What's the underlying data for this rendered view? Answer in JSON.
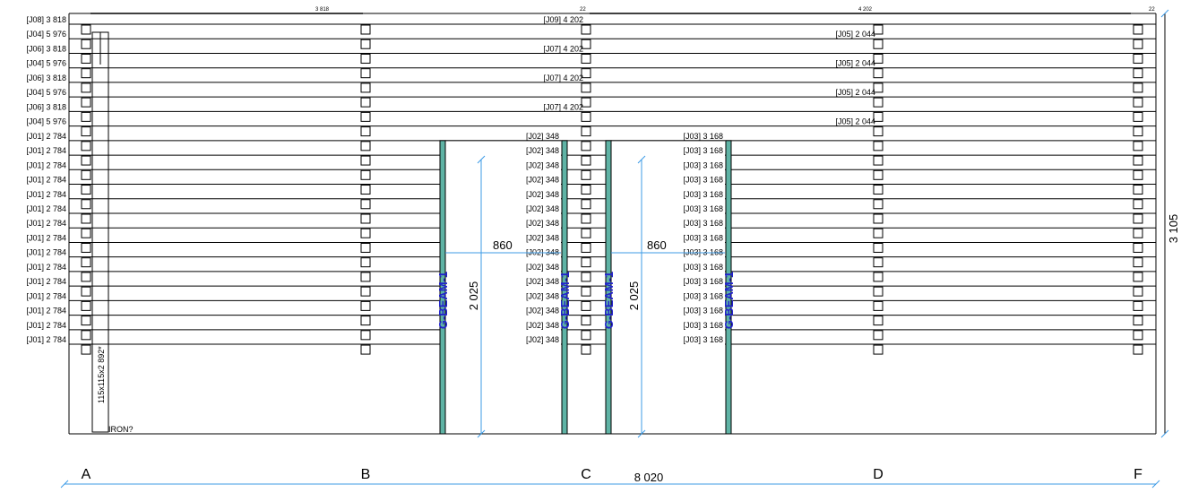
{
  "colors": {
    "line": "#000000",
    "dimension": "#3c9be6",
    "beam_fill": "#5fb3a5",
    "beam_text": "#2a2acc"
  },
  "top_dimensions": {
    "left": "3 818",
    "right": "4 202",
    "mid_small": "22",
    "right_small": "22"
  },
  "left_labels": [
    "[J08] 3 818",
    "[J04] 5 976",
    "[J06] 3 818",
    "[J04] 5 976",
    "[J06] 3 818",
    "[J04] 5 976",
    "[J06] 3 818",
    "[J04] 5 976",
    "[J01] 2 784",
    "[J01] 2 784",
    "[J01] 2 784",
    "[J01] 2 784",
    "[J01] 2 784",
    "[J01] 2 784",
    "[J01] 2 784",
    "[J01] 2 784",
    "[J01] 2 784",
    "[J01] 2 784",
    "[J01] 2 784",
    "[J01] 2 784",
    "[J01] 2 784",
    "[J01] 2 784",
    "[J01] 2 784"
  ],
  "c_labels_top": [
    "[J09] 4 202",
    "[J07] 4 202",
    "[J07] 4 202",
    "[J07] 4 202"
  ],
  "d_labels_top": [
    "[J05] 2 044",
    "[J05] 2 044",
    "[J05] 2 044",
    "[J05] 2 044"
  ],
  "c_labels_lower": [
    "[J02] 348",
    "[J02] 348",
    "[J02] 348",
    "[J02] 348",
    "[J02] 348",
    "[J02] 348",
    "[J02] 348",
    "[J02] 348",
    "[J02] 348",
    "[J02] 348",
    "[J02] 348",
    "[J02] 348",
    "[J02] 348",
    "[J02] 348",
    "[J02] 348"
  ],
  "d_labels_lower": [
    "[J03] 3 168",
    "[J03] 3 168",
    "[J03] 3 168",
    "[J03] 3 168",
    "[J03] 3 168",
    "[J03] 3 168",
    "[J03] 3 168",
    "[J03] 3 168",
    "[J03] 3 168",
    "[J03] 3 168",
    "[J03] 3 168",
    "[J03] 3 168",
    "[J03] 3 168",
    "[J03] 3 168",
    "[J03] 3 168"
  ],
  "beam_label": "G-BEAM-1",
  "post_label": "115x115x2 892*",
  "iron_label": "IRON?",
  "dimensions": {
    "opening_width": "860",
    "opening_height": "2 025",
    "total_height": "3 105",
    "total_width": "8 020"
  },
  "axes": [
    "A",
    "B",
    "C",
    "D",
    "F"
  ]
}
